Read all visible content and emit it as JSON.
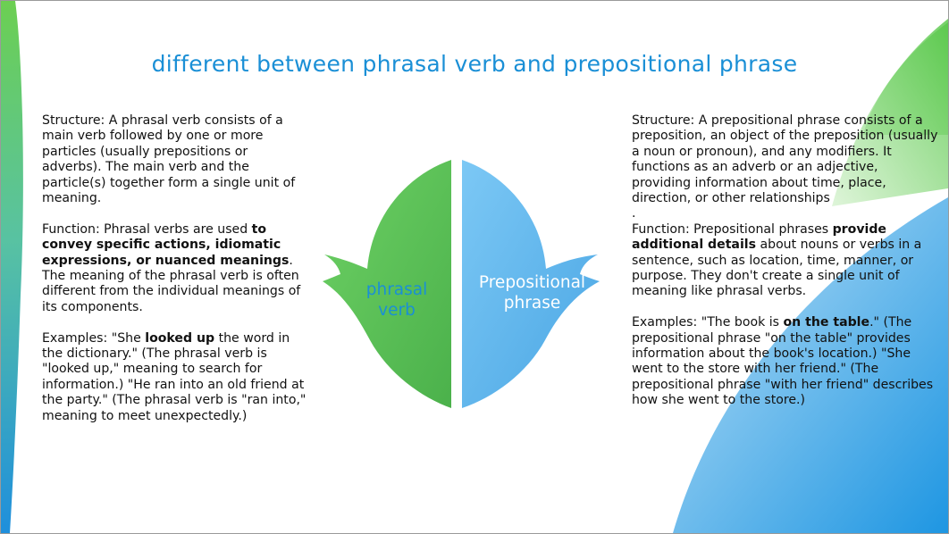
{
  "slide": {
    "title": "different between phrasal verb and prepositional phrase"
  },
  "diagram": {
    "left_label": "phrasal verb",
    "right_label": "Prepositional phrase",
    "colors": {
      "green": "#5cc25a",
      "blue": "#5aaee8",
      "title": "#1a8fd6"
    }
  },
  "left_column": {
    "structure": "Structure: A phrasal verb consists of a main verb followed by one or more particles (usually prepositions or adverbs). The main verb and the particle(s) together form a single unit of meaning.",
    "function_pre": "Function: Phrasal verbs are used ",
    "function_bold": "to convey specific actions, idiomatic expressions, or nuanced meanings",
    "function_post": ". The meaning of the phrasal verb is often different from the individual meanings of its components.",
    "examples_pre": "Examples: \"She ",
    "examples_bold": "looked up",
    "examples_post": " the word in the dictionary.\" (The phrasal verb is \"looked up,\" meaning to search for information.) \"He ran into an old friend at the party.\" (The phrasal verb is \"ran into,\" meaning to meet unexpectedly.)"
  },
  "right_column": {
    "structure": "Structure: A prepositional phrase consists of a preposition, an object of the preposition (usually a noun or pronoun), and any modifiers. It functions as an adverb or an adjective, providing information about time, place, direction, or other relationships",
    "dot": ".",
    "function_pre": "Function: Prepositional phrases ",
    "function_bold": "provide additional details",
    "function_post": " about nouns or verbs in a sentence, such as location, time, manner, or purpose. They don't create a single unit of meaning like phrasal verbs.",
    "examples_pre": "Examples: \"The book is ",
    "examples_bold": "on the table",
    "examples_post": ".\" (The prepositional phrase \"on the table\" provides information about the book's location.) \"She went to the store with her friend.\" (The prepositional phrase \"with her friend\" describes how she went to the store.)"
  }
}
